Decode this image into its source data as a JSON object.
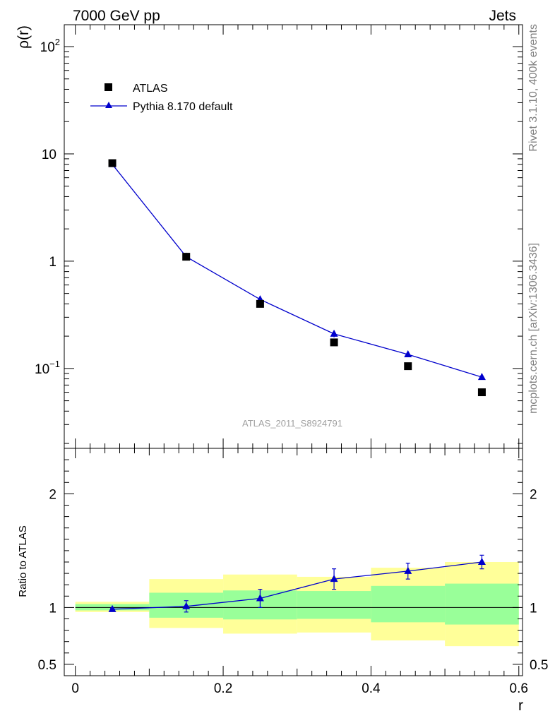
{
  "header": {
    "title_left": "7000 GeV pp",
    "title_right": "Jets"
  },
  "side_text": {
    "rivet": "Rivet 3.1.10,  400k events",
    "mcplots": "mcplots.cern.ch [arXiv:1306.3436]"
  },
  "analysis_label": "ATLAS_2011_S8924791",
  "colors": {
    "data": "#000000",
    "mc": "#0000cc",
    "band_outer": "#ffff99",
    "band_inner": "#99ff99"
  },
  "chart_data": [
    {
      "type": "scatter",
      "panel": "main",
      "ylabel": "ρ(r)",
      "yscale": "log",
      "ylim": [
        0.018,
        160
      ],
      "xlim": [
        -0.015,
        0.605
      ],
      "y_ticks": [
        {
          "value": 0.1,
          "base": "10",
          "exp": "−1"
        },
        {
          "value": 1,
          "base": "1",
          "exp": ""
        },
        {
          "value": 10,
          "base": "10",
          "exp": ""
        },
        {
          "value": 100,
          "base": "10",
          "exp": "2"
        }
      ],
      "legend": {
        "placement": "top-left",
        "entries": [
          {
            "label": "ATLAS",
            "marker": "square"
          },
          {
            "label": "Pythia 8.170 default",
            "marker": "triangle-line"
          }
        ]
      },
      "series": [
        {
          "name": "ATLAS",
          "x": [
            0.05,
            0.15,
            0.25,
            0.35,
            0.45,
            0.55
          ],
          "y": [
            8.2,
            1.1,
            0.4,
            0.175,
            0.105,
            0.06
          ]
        },
        {
          "name": "Pythia 8.170 default",
          "x": [
            0.05,
            0.15,
            0.25,
            0.35,
            0.45,
            0.55
          ],
          "y": [
            8.0,
            1.1,
            0.44,
            0.21,
            0.135,
            0.083
          ],
          "y_err": [
            0.15,
            0.02,
            0.03,
            0.015,
            0.006,
            0.003
          ]
        }
      ]
    },
    {
      "type": "scatter",
      "panel": "ratio",
      "xlabel": "r",
      "ylabel": "Ratio to ATLAS",
      "ylim": [
        0.4,
        2.4
      ],
      "xlim": [
        -0.015,
        0.605
      ],
      "x_ticks": [
        {
          "value": 0,
          "label": "0"
        },
        {
          "value": 0.2,
          "label": "0.2"
        },
        {
          "value": 0.4,
          "label": "0.4"
        },
        {
          "value": 0.6,
          "label": "0.6"
        }
      ],
      "y_ticks": [
        {
          "value": 0.5,
          "label": "0.5"
        },
        {
          "value": 1,
          "label": "1"
        },
        {
          "value": 2,
          "label": "2"
        }
      ],
      "bands": [
        {
          "x0": 0.0,
          "x1": 0.1,
          "outer": [
            0.96,
            1.05
          ],
          "inner": [
            0.975,
            1.03
          ]
        },
        {
          "x0": 0.1,
          "x1": 0.2,
          "outer": [
            0.82,
            1.25
          ],
          "inner": [
            0.91,
            1.13
          ]
        },
        {
          "x0": 0.2,
          "x1": 0.3,
          "outer": [
            0.77,
            1.29
          ],
          "inner": [
            0.895,
            1.15
          ]
        },
        {
          "x0": 0.3,
          "x1": 0.4,
          "outer": [
            0.78,
            1.27
          ],
          "inner": [
            0.9,
            1.145
          ]
        },
        {
          "x0": 0.4,
          "x1": 0.5,
          "outer": [
            0.71,
            1.35
          ],
          "inner": [
            0.87,
            1.19
          ]
        },
        {
          "x0": 0.5,
          "x1": 0.6,
          "outer": [
            0.66,
            1.4
          ],
          "inner": [
            0.85,
            1.21
          ]
        }
      ],
      "series": [
        {
          "name": "Pythia 8.170 default",
          "x": [
            0.05,
            0.15,
            0.25,
            0.35,
            0.45,
            0.55
          ],
          "y": [
            0.985,
            1.01,
            1.08,
            1.25,
            1.32,
            1.4
          ],
          "y_err": [
            0.01,
            0.05,
            0.08,
            0.09,
            0.07,
            0.06
          ]
        }
      ]
    }
  ]
}
